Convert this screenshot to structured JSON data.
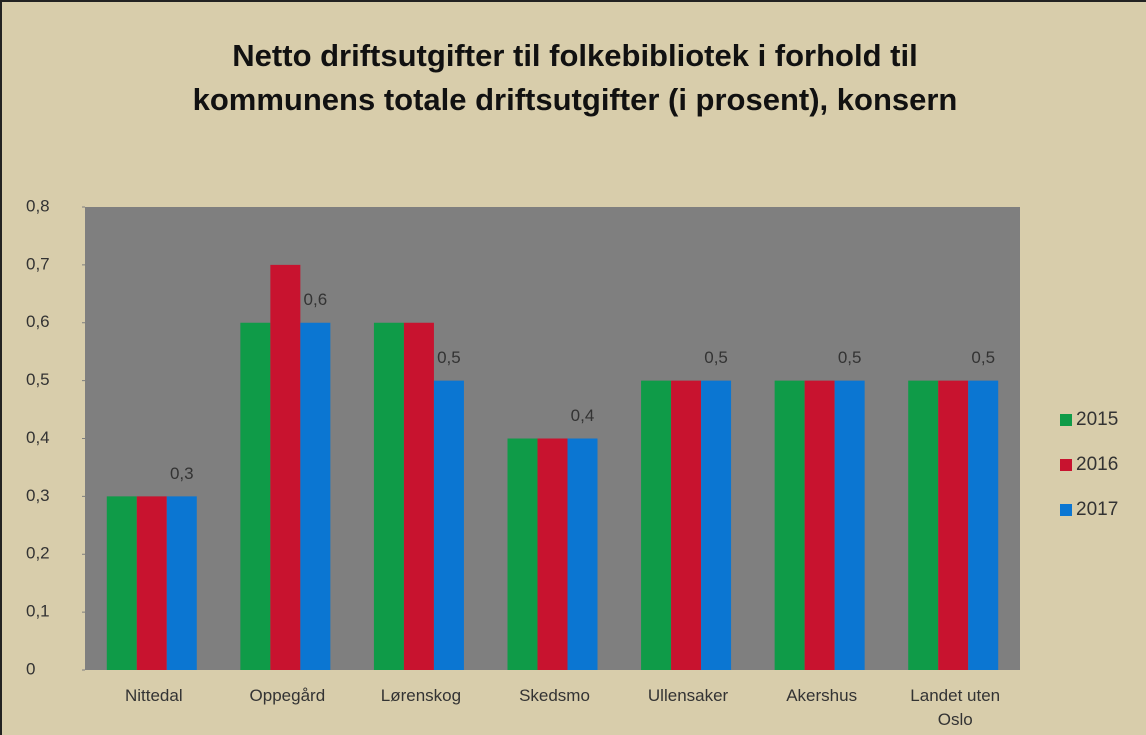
{
  "chart_data": {
    "type": "bar",
    "title": "Netto driftsutgifter til folkebibliotek i forhold til kommunens totale driftsutgifter (i prosent), konsern",
    "categories": [
      "Nittedal",
      "Oppegård",
      "Lørenskog",
      "Skedsmo",
      "Ullensaker",
      "Akershus",
      "Landet uten Oslo"
    ],
    "series": [
      {
        "name": "2015",
        "color": "#0f9b48",
        "values": [
          0.3,
          0.6,
          0.6,
          0.4,
          0.5,
          0.5,
          0.5
        ]
      },
      {
        "name": "2016",
        "color": "#c8132f",
        "values": [
          0.3,
          0.7,
          0.6,
          0.4,
          0.5,
          0.5,
          0.5
        ]
      },
      {
        "name": "2017",
        "color": "#0b76d2",
        "values": [
          0.3,
          0.6,
          0.5,
          0.4,
          0.5,
          0.5,
          0.5
        ],
        "value_labels": [
          "0,3",
          "0,6",
          "0,5",
          "0,4",
          "0,5",
          "0,5",
          "0,5"
        ]
      }
    ],
    "ylim": [
      0,
      0.8
    ],
    "yticks": [
      0,
      {
        "value": 0.1,
        "label": "0,1"
      },
      {
        "value": 0.2,
        "label": "0,2"
      },
      {
        "value": 0.3,
        "label": "0,3"
      },
      {
        "value": 0.4,
        "label": "0,4"
      },
      {
        "value": 0.5,
        "label": "0,5"
      },
      {
        "value": 0.6,
        "label": "0,6"
      },
      {
        "value": 0.7,
        "label": "0,7"
      },
      {
        "value": 0.8,
        "label": "0,8"
      }
    ],
    "legend": "right"
  }
}
